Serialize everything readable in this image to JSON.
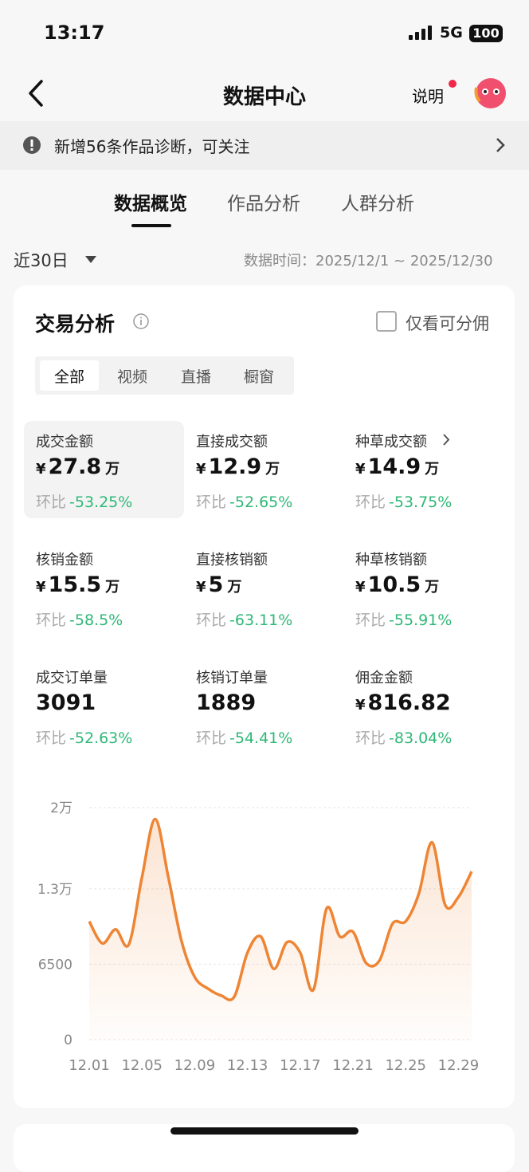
{
  "status_bar": {
    "time": "13:17",
    "network": "5G",
    "battery": "100"
  },
  "header": {
    "title": "数据中心",
    "help": "说明"
  },
  "notice": {
    "text": "新增56条作品诊断，可关注"
  },
  "tabs": [
    "数据概览",
    "作品分析",
    "人群分析"
  ],
  "filter": {
    "range": "近30日",
    "data_time": "数据时间：2025/12/1 ~ 2025/12/30"
  },
  "card": {
    "title": "交易分析",
    "checkbox": "仅看可分佣",
    "segments": [
      "全部",
      "视频",
      "直播",
      "橱窗"
    ],
    "metrics": [
      {
        "label": "成交金额",
        "currency": "¥",
        "value": "27.8",
        "unit": "万",
        "compare_label": "环比",
        "change": "-53.25%"
      },
      {
        "label": "直接成交额",
        "currency": "¥",
        "value": "12.9",
        "unit": "万",
        "compare_label": "环比",
        "change": "-52.65%"
      },
      {
        "label": "种草成交额",
        "currency": "¥",
        "value": "14.9",
        "unit": "万",
        "compare_label": "环比",
        "change": "-53.75%"
      },
      {
        "label": "核销金额",
        "currency": "¥",
        "value": "15.5",
        "unit": "万",
        "compare_label": "环比",
        "change": "-58.5%"
      },
      {
        "label": "直接核销额",
        "currency": "¥",
        "value": "5",
        "unit": "万",
        "compare_label": "环比",
        "change": "-63.11%"
      },
      {
        "label": "种草核销额",
        "currency": "¥",
        "value": "10.5",
        "unit": "万",
        "compare_label": "环比",
        "change": "-55.91%"
      },
      {
        "label": "成交订单量",
        "value": "3091",
        "compare_label": "环比",
        "change": "-52.63%"
      },
      {
        "label": "核销订单量",
        "value": "1889",
        "compare_label": "环比",
        "change": "-54.41%"
      },
      {
        "label": "佣金金额",
        "currency": "¥",
        "value": "816.82",
        "compare_label": "环比",
        "change": "-83.04%"
      }
    ]
  },
  "chart_data": {
    "type": "area",
    "categories": [
      "12.01",
      null,
      null,
      null,
      "12.05",
      null,
      null,
      null,
      "12.09",
      null,
      null,
      null,
      "12.13",
      null,
      null,
      null,
      "12.17",
      null,
      null,
      null,
      "12.21",
      null,
      null,
      null,
      "12.25",
      null,
      null,
      null,
      "12.29",
      null
    ],
    "values": [
      10200,
      8300,
      9500,
      8200,
      14000,
      19000,
      14000,
      8500,
      5400,
      4400,
      3800,
      3700,
      7500,
      8900,
      6100,
      8400,
      7500,
      4300,
      11300,
      8900,
      9300,
      6600,
      6800,
      10000,
      10200,
      12600,
      17000,
      11600,
      12300,
      14500
    ],
    "color": "#ee8535",
    "ylim": [
      0,
      20000
    ],
    "yticks": [
      0,
      6500,
      {
        "value": 13000,
        "label": "1.3万"
      },
      {
        "value": 20000,
        "label": "2万"
      }
    ],
    "grid": true
  }
}
